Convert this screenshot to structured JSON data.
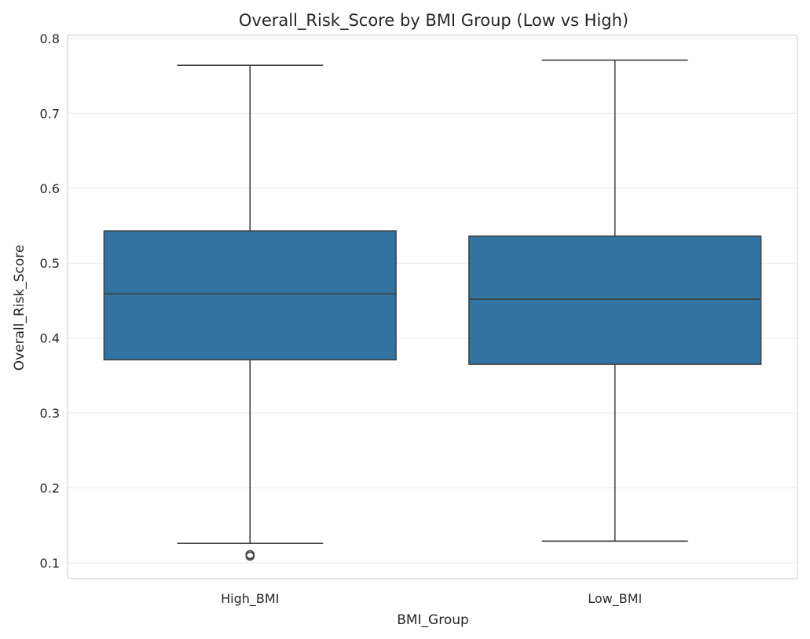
{
  "chart_data": {
    "type": "box",
    "title": "Overall_Risk_Score by BMI Group (Low vs High)",
    "xlabel": "BMI_Group",
    "ylabel": "Overall_Risk_Score",
    "ylim": [
      0.08,
      0.805
    ],
    "yticks": [
      "0.1",
      "0.2",
      "0.3",
      "0.4",
      "0.5",
      "0.6",
      "0.7",
      "0.8"
    ],
    "grid": true,
    "categories": [
      "High_BMI",
      "Low_BMI"
    ],
    "boxes": [
      {
        "category": "High_BMI",
        "whisker_low": 0.126,
        "q1": 0.371,
        "median": 0.459,
        "q3": 0.543,
        "whisker_high": 0.764,
        "outliers": [
          0.111,
          0.109
        ]
      },
      {
        "category": "Low_BMI",
        "whisker_low": 0.129,
        "q1": 0.365,
        "median": 0.452,
        "q3": 0.536,
        "whisker_high": 0.771,
        "outliers": []
      }
    ],
    "colors": {
      "box_fill": "#3274a1",
      "line": "#3f3f3f",
      "grid": "#ebebeb",
      "frame": "#cccccc"
    }
  }
}
